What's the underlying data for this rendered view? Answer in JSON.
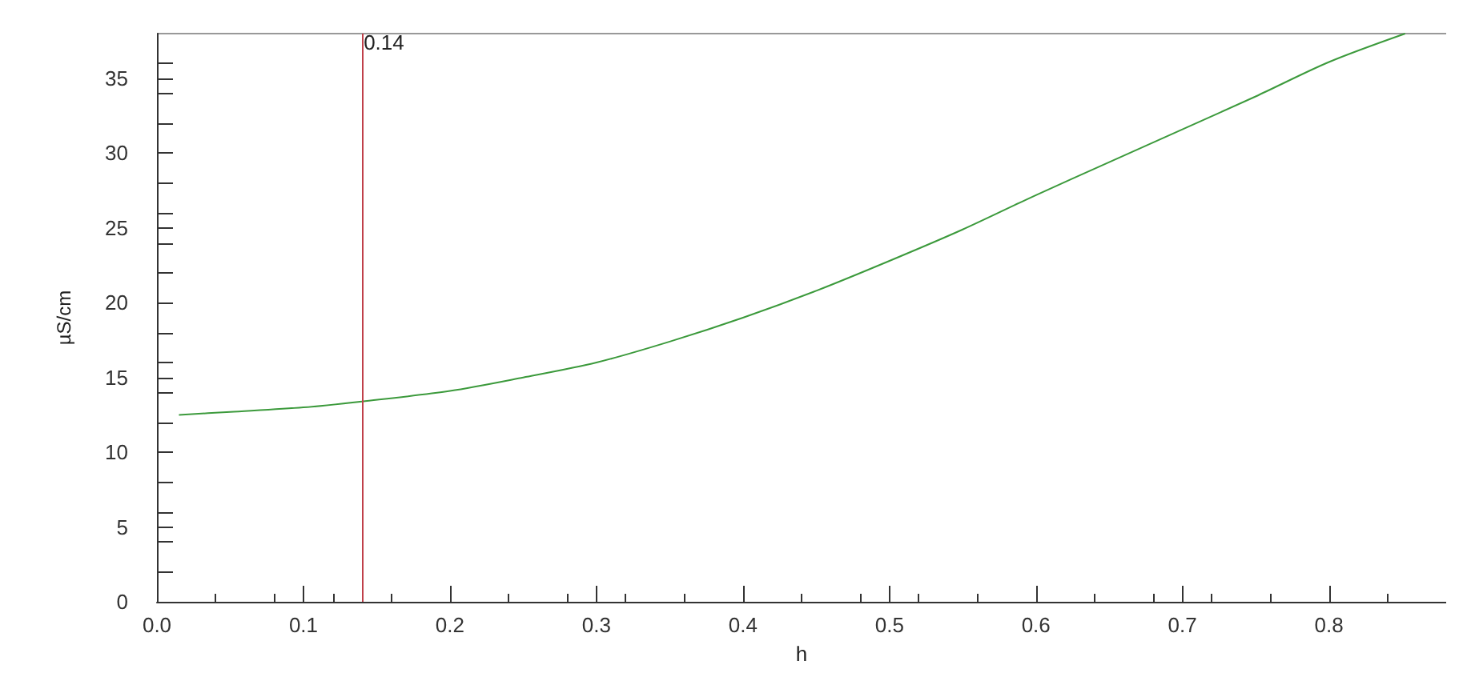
{
  "chart_data": {
    "type": "line",
    "xlabel": "h",
    "ylabel": "µS/cm",
    "series": [
      {
        "color": "#3c9a3c",
        "x": [
          0.015,
          0.05,
          0.1,
          0.14,
          0.2,
          0.25,
          0.3,
          0.35,
          0.4,
          0.45,
          0.5,
          0.55,
          0.6,
          0.65,
          0.7,
          0.75,
          0.8,
          0.852
        ],
        "values": [
          12.5,
          12.7,
          13.0,
          13.4,
          14.1,
          15.0,
          16.0,
          17.4,
          19.0,
          20.8,
          22.8,
          24.9,
          27.2,
          29.4,
          31.6,
          33.8,
          36.1,
          38
        ]
      }
    ],
    "xlim": [
      0,
      0.88
    ],
    "xticks": [
      {
        "value": 0,
        "label": "0.0"
      },
      0.1,
      0.2,
      0.3,
      0.4,
      0.5,
      0.6,
      0.7,
      0.8
    ],
    "ylim": [
      0,
      38
    ],
    "yticks": [
      0,
      5,
      10,
      15,
      20,
      25,
      30,
      35
    ],
    "ref_lines": [
      {
        "axis": "x",
        "value": 0.14,
        "label": "0.14",
        "color": "#c0404a"
      }
    ],
    "grid": false,
    "marker": "none",
    "line_style": "solid"
  }
}
